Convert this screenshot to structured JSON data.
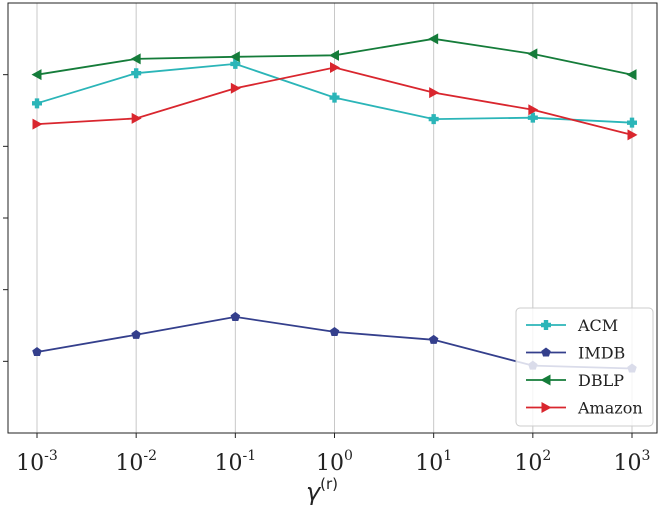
{
  "chart_data": {
    "type": "line",
    "title": "",
    "xlabel": "γ",
    "xlabel_sup": "(r)",
    "ylabel": "",
    "x_ticks": [
      {
        "base": "10",
        "exp": "-3"
      },
      {
        "base": "10",
        "exp": "-2"
      },
      {
        "base": "10",
        "exp": "-1"
      },
      {
        "base": "10",
        "exp": "0"
      },
      {
        "base": "10",
        "exp": "1"
      },
      {
        "base": "10",
        "exp": "2"
      },
      {
        "base": "10",
        "exp": "3"
      }
    ],
    "x": [
      0.001,
      0.01,
      0.1,
      1,
      10,
      100,
      1000
    ],
    "x_scale": "log",
    "y_scale_note": "y tick labels not visible",
    "ylim": [
      0,
      6
    ],
    "y_ticks": [
      1,
      2,
      3,
      4,
      5
    ],
    "grid": "vertical",
    "legend_position": "bottom-right",
    "series": [
      {
        "name": "ACM",
        "color": "#2bb5b8",
        "marker": "plus-filled",
        "values": [
          4.6,
          5.02,
          5.15,
          4.68,
          4.38,
          4.4,
          4.33
        ]
      },
      {
        "name": "IMDB",
        "color": "#343f8c",
        "marker": "pentagon",
        "values": [
          1.13,
          1.37,
          1.62,
          1.41,
          1.3,
          0.94,
          0.9
        ]
      },
      {
        "name": "DBLP",
        "color": "#157c3a",
        "marker": "triangle-left",
        "values": [
          5.0,
          5.22,
          5.25,
          5.27,
          5.5,
          5.29,
          5.0
        ]
      },
      {
        "name": "Amazon",
        "color": "#d9262e",
        "marker": "triangle-right",
        "values": [
          4.31,
          4.39,
          4.81,
          5.1,
          4.75,
          4.51,
          4.16
        ]
      }
    ]
  }
}
